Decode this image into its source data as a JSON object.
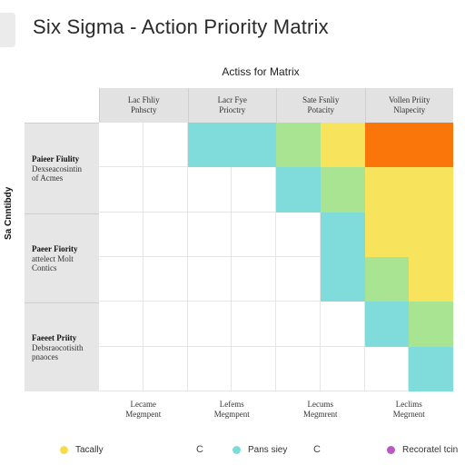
{
  "title": "Six Sigma - Action Priority Matrix",
  "subtitle": "Actiss for Matrix",
  "y_axis_label": "Sa Cnntibdy",
  "columns": [
    {
      "line1": "Lac Fhliy",
      "line2": "Pnhscty"
    },
    {
      "line1": "Lacr Fye",
      "line2": "Prioctry"
    },
    {
      "line1": "Sate Fsnliy",
      "line2": "Potacity"
    },
    {
      "line1": "Vollen Priity",
      "line2": "Nlapecity"
    }
  ],
  "rows": [
    {
      "title": "Paieer Fiulity",
      "sub1": "Dexseacosintin",
      "sub2": "of Acmes"
    },
    {
      "title": "Paeer Fiority",
      "sub1": "attelect Molt",
      "sub2": "Contics"
    },
    {
      "title": "Faeeet Priity",
      "sub1": "Debsraocotisith",
      "sub2": "pnaoces"
    }
  ],
  "footers": [
    {
      "line1": "Lecame",
      "line2": "Megmpent"
    },
    {
      "line1": "Lefems",
      "line2": "Megmpent"
    },
    {
      "line1": "Lecums",
      "line2": "Megmrent"
    },
    {
      "line1": "Leclims",
      "line2": "Megrnent"
    }
  ],
  "legend": [
    {
      "label": "Tacally",
      "color": "#f5dc4f"
    },
    {
      "label": "Pans siey",
      "color": "#7ddcd8"
    },
    {
      "label": "Recoratel tcin",
      "color": "#b75bc0"
    }
  ],
  "legend_separators": [
    "C",
    "C"
  ],
  "colors": {
    "empty": "#ffffff",
    "teal": "#7fdcdb",
    "green": "#a8e492",
    "yellow": "#f8e35d",
    "orange": "#fa760b",
    "header_bg": "#e2e2e2"
  },
  "heatmap": {
    "rows": 6,
    "cols": 8,
    "cells": [
      [
        "empty",
        "empty",
        "teal",
        "teal",
        "green",
        "yellow",
        "orange",
        "orange"
      ],
      [
        "empty",
        "empty",
        "empty",
        "empty",
        "teal",
        "green",
        "yellow",
        "yellow"
      ],
      [
        "empty",
        "empty",
        "empty",
        "empty",
        "empty",
        "teal",
        "yellow",
        "yellow"
      ],
      [
        "empty",
        "empty",
        "empty",
        "empty",
        "empty",
        "teal",
        "green",
        "yellow"
      ],
      [
        "empty",
        "empty",
        "empty",
        "empty",
        "empty",
        "empty",
        "teal",
        "green"
      ],
      [
        "empty",
        "empty",
        "empty",
        "empty",
        "empty",
        "empty",
        "empty",
        "teal"
      ]
    ]
  }
}
